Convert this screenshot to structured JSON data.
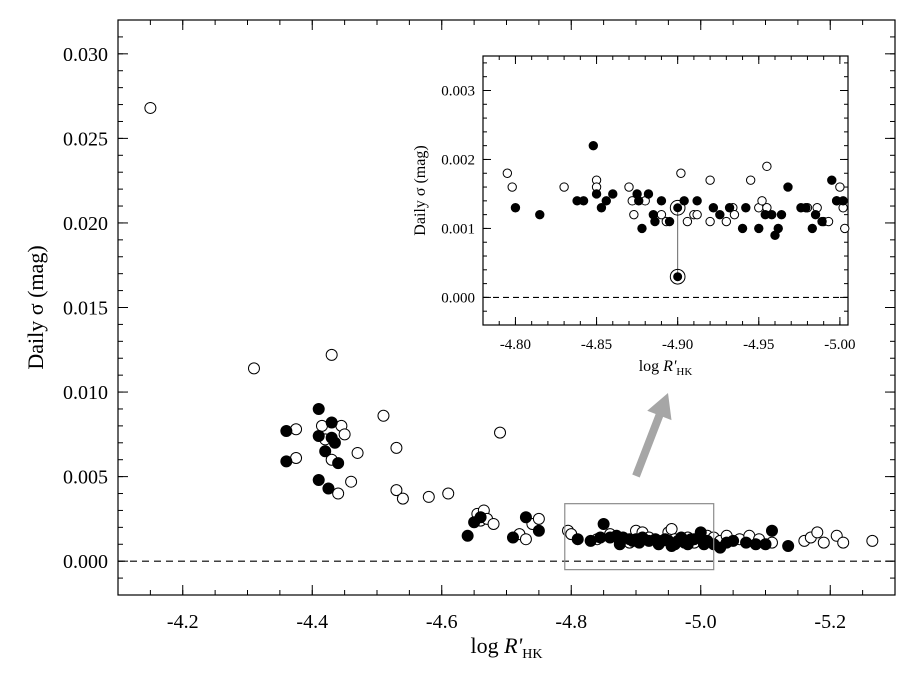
{
  "chart_data": [
    {
      "type": "scatter",
      "xlabel": "log R'HK",
      "xlabel_main": "log R'",
      "xlabel_sub": "HK",
      "ylabel": "Daily σ (mag)",
      "xlim": [
        -4.1,
        -5.3
      ],
      "ylim": [
        -0.002,
        0.032
      ],
      "x_axis_reversed": true,
      "x_ticks": [
        -4.2,
        -4.4,
        -4.6,
        -4.8,
        -5.0,
        -5.2
      ],
      "x_tick_labels": [
        "-4.2",
        "-4.4",
        "-4.6",
        "-4.8",
        "-5.0",
        "-5.2"
      ],
      "y_ticks": [
        0.0,
        0.005,
        0.01,
        0.015,
        0.02,
        0.025,
        0.03
      ],
      "y_tick_labels": [
        "0.000",
        "0.005",
        "0.010",
        "0.015",
        "0.020",
        "0.025",
        "0.030"
      ],
      "zero_reference_line": 0.0,
      "grid": false,
      "series": [
        {
          "marker": "open-circle",
          "points": [
            [
              -4.15,
              0.0268
            ],
            [
              -4.31,
              0.0114
            ],
            [
              -4.43,
              0.0122
            ],
            [
              -4.375,
              0.0078
            ],
            [
              -4.375,
              0.0061
            ],
            [
              -4.415,
              0.008
            ],
            [
              -4.42,
              0.0072
            ],
            [
              -4.445,
              0.008
            ],
            [
              -4.45,
              0.0075
            ],
            [
              -4.43,
              0.006
            ],
            [
              -4.46,
              0.0047
            ],
            [
              -4.44,
              0.004
            ],
            [
              -4.47,
              0.0064
            ],
            [
              -4.51,
              0.0086
            ],
            [
              -4.53,
              0.0067
            ],
            [
              -4.53,
              0.0042
            ],
            [
              -4.54,
              0.0037
            ],
            [
              -4.58,
              0.0038
            ],
            [
              -4.61,
              0.004
            ],
            [
              -4.69,
              0.0076
            ],
            [
              -4.655,
              0.0028
            ],
            [
              -4.66,
              0.0024
            ],
            [
              -4.665,
              0.003
            ],
            [
              -4.67,
              0.0025
            ],
            [
              -4.68,
              0.0022
            ],
            [
              -4.74,
              0.0022
            ],
            [
              -4.75,
              0.0025
            ],
            [
              -4.72,
              0.0016
            ],
            [
              -4.73,
              0.0013
            ],
            [
              -4.795,
              0.0018
            ],
            [
              -4.8,
              0.0016
            ],
            [
              -4.84,
              0.0013
            ],
            [
              -4.86,
              0.0016
            ],
            [
              -4.875,
              0.0012
            ],
            [
              -4.89,
              0.0011
            ],
            [
              -4.9,
              0.0018
            ],
            [
              -4.91,
              0.0017
            ],
            [
              -4.92,
              0.0014
            ],
            [
              -4.935,
              0.0011
            ],
            [
              -4.94,
              0.0012
            ],
            [
              -4.95,
              0.0017
            ],
            [
              -4.955,
              0.0019
            ],
            [
              -4.96,
              0.0013
            ],
            [
              -4.98,
              0.0014
            ],
            [
              -4.99,
              0.0011
            ],
            [
              -5.01,
              0.0015
            ],
            [
              -5.02,
              0.0014
            ],
            [
              -5.03,
              0.0012
            ],
            [
              -5.04,
              0.0015
            ],
            [
              -5.06,
              0.0013
            ],
            [
              -5.075,
              0.0015
            ],
            [
              -5.09,
              0.0013
            ],
            [
              -5.11,
              0.0011
            ],
            [
              -5.16,
              0.0012
            ],
            [
              -5.17,
              0.0014
            ],
            [
              -5.18,
              0.0017
            ],
            [
              -5.19,
              0.0011
            ],
            [
              -5.21,
              0.0015
            ],
            [
              -5.22,
              0.0011
            ],
            [
              -5.265,
              0.0012
            ]
          ]
        },
        {
          "marker": "filled-circle",
          "points": [
            [
              -4.36,
              0.0077
            ],
            [
              -4.36,
              0.0059
            ],
            [
              -4.41,
              0.009
            ],
            [
              -4.41,
              0.0074
            ],
            [
              -4.42,
              0.0065
            ],
            [
              -4.43,
              0.0082
            ],
            [
              -4.43,
              0.0073
            ],
            [
              -4.435,
              0.007
            ],
            [
              -4.44,
              0.0058
            ],
            [
              -4.41,
              0.0048
            ],
            [
              -4.425,
              0.0043
            ],
            [
              -4.64,
              0.0015
            ],
            [
              -4.65,
              0.0023
            ],
            [
              -4.66,
              0.0026
            ],
            [
              -4.71,
              0.0014
            ],
            [
              -4.73,
              0.0026
            ],
            [
              -4.75,
              0.0018
            ],
            [
              -4.81,
              0.0013
            ],
            [
              -4.83,
              0.0012
            ],
            [
              -4.845,
              0.0014
            ],
            [
              -4.85,
              0.0022
            ],
            [
              -4.86,
              0.0014
            ],
            [
              -4.87,
              0.0015
            ],
            [
              -4.875,
              0.001
            ],
            [
              -4.88,
              0.0014
            ],
            [
              -4.89,
              0.0013
            ],
            [
              -4.895,
              0.0012
            ],
            [
              -4.9,
              0.0013
            ],
            [
              -4.905,
              0.0011
            ],
            [
              -4.91,
              0.0014
            ],
            [
              -4.92,
              0.0012
            ],
            [
              -4.93,
              0.0013
            ],
            [
              -4.935,
              0.001
            ],
            [
              -4.945,
              0.0013
            ],
            [
              -4.95,
              0.0012
            ],
            [
              -4.955,
              0.0009
            ],
            [
              -4.96,
              0.001
            ],
            [
              -4.965,
              0.0012
            ],
            [
              -4.97,
              0.0014
            ],
            [
              -4.975,
              0.0011
            ],
            [
              -4.98,
              0.001
            ],
            [
              -4.985,
              0.0013
            ],
            [
              -4.99,
              0.0013
            ],
            [
              -5.0,
              0.0017
            ],
            [
              -5.0,
              0.0014
            ],
            [
              -5.005,
              0.001
            ],
            [
              -5.01,
              0.0012
            ],
            [
              -5.02,
              0.001
            ],
            [
              -5.03,
              0.0008
            ],
            [
              -5.04,
              0.0011
            ],
            [
              -5.05,
              0.0012
            ],
            [
              -5.07,
              0.0011
            ],
            [
              -5.085,
              0.001
            ],
            [
              -5.1,
              0.001
            ],
            [
              -5.11,
              0.0018
            ],
            [
              -5.135,
              0.0009
            ]
          ]
        }
      ],
      "zoom_box": {
        "x": [
          -4.79,
          -5.02
        ],
        "y": [
          -0.0005,
          0.0034
        ]
      },
      "arrow": {
        "color": "#a6a6a6",
        "direction": "toward inset"
      }
    },
    {
      "type": "scatter",
      "role": "inset",
      "xlabel": "log R'HK",
      "xlabel_main": "log R'",
      "xlabel_sub": "HK",
      "ylabel": "Daily σ (mag)",
      "xlim": [
        -4.78,
        -5.005
      ],
      "ylim": [
        -0.0004,
        0.0035
      ],
      "x_axis_reversed": true,
      "x_ticks": [
        -4.8,
        -4.85,
        -4.9,
        -4.95,
        -5.0
      ],
      "x_tick_labels": [
        "-4.80",
        "-4.85",
        "-4.90",
        "-4.95",
        "-5.00"
      ],
      "y_ticks": [
        0.0,
        0.001,
        0.002,
        0.003
      ],
      "y_tick_labels": [
        "0.000",
        "0.001",
        "0.002",
        "0.003"
      ],
      "zero_reference_line": 0.0,
      "grid": false,
      "series": [
        {
          "marker": "open-circle",
          "points": [
            [
              -4.795,
              0.0018
            ],
            [
              -4.798,
              0.0016
            ],
            [
              -4.83,
              0.0016
            ],
            [
              -4.85,
              0.0017
            ],
            [
              -4.85,
              0.0016
            ],
            [
              -4.87,
              0.0016
            ],
            [
              -4.872,
              0.0014
            ],
            [
              -4.873,
              0.0012
            ],
            [
              -4.88,
              0.0014
            ],
            [
              -4.89,
              0.0012
            ],
            [
              -4.893,
              0.0011
            ],
            [
              -4.902,
              0.0018
            ],
            [
              -4.906,
              0.0011
            ],
            [
              -4.91,
              0.0012
            ],
            [
              -4.912,
              0.0012
            ],
            [
              -4.92,
              0.0017
            ],
            [
              -4.92,
              0.0011
            ],
            [
              -4.93,
              0.0011
            ],
            [
              -4.934,
              0.0013
            ],
            [
              -4.935,
              0.0012
            ],
            [
              -4.945,
              0.0017
            ],
            [
              -4.95,
              0.0013
            ],
            [
              -4.952,
              0.0014
            ],
            [
              -4.955,
              0.0013
            ],
            [
              -4.955,
              0.0019
            ],
            [
              -4.98,
              0.0013
            ],
            [
              -4.986,
              0.0013
            ],
            [
              -4.99,
              0.0011
            ],
            [
              -4.993,
              0.0011
            ],
            [
              -5.0,
              0.0016
            ],
            [
              -4.998,
              0.0014
            ],
            [
              -5.002,
              0.0013
            ],
            [
              -5.003,
              0.001
            ]
          ]
        },
        {
          "marker": "filled-circle",
          "points": [
            [
              -4.8,
              0.0013
            ],
            [
              -4.815,
              0.0012
            ],
            [
              -4.838,
              0.0014
            ],
            [
              -4.842,
              0.0014
            ],
            [
              -4.848,
              0.0022
            ],
            [
              -4.85,
              0.0015
            ],
            [
              -4.853,
              0.0013
            ],
            [
              -4.856,
              0.0014
            ],
            [
              -4.86,
              0.0015
            ],
            [
              -4.875,
              0.0015
            ],
            [
              -4.876,
              0.0014
            ],
            [
              -4.878,
              0.001
            ],
            [
              -4.882,
              0.0015
            ],
            [
              -4.885,
              0.0012
            ],
            [
              -4.886,
              0.0011
            ],
            [
              -4.89,
              0.0014
            ],
            [
              -4.895,
              0.0011
            ],
            [
              -4.904,
              0.0014
            ],
            [
              -4.912,
              0.0014
            ],
            [
              -4.922,
              0.0013
            ],
            [
              -4.926,
              0.0012
            ],
            [
              -4.932,
              0.0013
            ],
            [
              -4.94,
              0.001
            ],
            [
              -4.942,
              0.0013
            ],
            [
              -4.95,
              0.001
            ],
            [
              -4.954,
              0.0012
            ],
            [
              -4.958,
              0.0012
            ],
            [
              -4.96,
              0.0009
            ],
            [
              -4.962,
              0.001
            ],
            [
              -4.964,
              0.0012
            ],
            [
              -4.968,
              0.0016
            ],
            [
              -4.976,
              0.0013
            ],
            [
              -4.979,
              0.0013
            ],
            [
              -4.985,
              0.0012
            ],
            [
              -4.989,
              0.0011
            ],
            [
              -4.995,
              0.0017
            ],
            [
              -4.998,
              0.0014
            ],
            [
              -5.002,
              0.0014
            ],
            [
              -4.983,
              0.001
            ]
          ]
        },
        {
          "marker": "circled-dot",
          "points": [
            [
              -4.9,
              0.0013
            ],
            [
              -4.9,
              0.0003
            ]
          ]
        }
      ],
      "connector": {
        "x": -4.9,
        "from": 0.0013,
        "to": 0.0003
      }
    }
  ]
}
